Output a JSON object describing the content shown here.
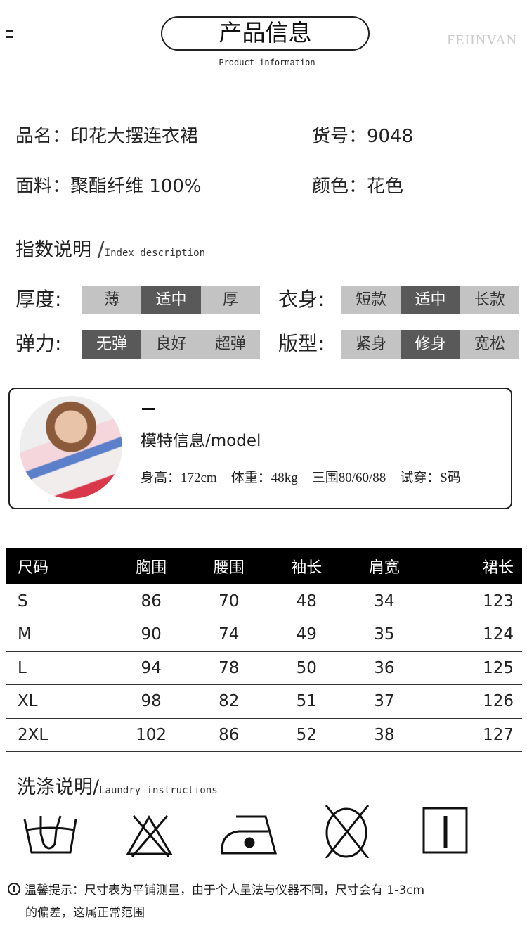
{
  "header": {
    "title": "产品信息",
    "subtitle": "Product information",
    "brand": "FEIINVAN"
  },
  "product": {
    "name": "品名：印花大摆连衣裙",
    "sku": "货号：9048",
    "fabric": "面料：聚酯纤维 100%",
    "color": "颜色：花色"
  },
  "index": {
    "title": "指数说明",
    "title_en": "Index description",
    "groups": [
      {
        "label": "厚度:",
        "options": [
          "薄",
          "适中",
          "厚"
        ],
        "selected": 1
      },
      {
        "label": "衣身:",
        "options": [
          "短款",
          "适中",
          "长款"
        ],
        "selected": 1
      },
      {
        "label": "弹力:",
        "options": [
          "无弹",
          "良好",
          "超弹"
        ],
        "selected": 0
      },
      {
        "label": "版型:",
        "options": [
          "紧身",
          "修身",
          "宽松"
        ],
        "selected": 1
      }
    ]
  },
  "model": {
    "title": "模特信息/model",
    "height": "身高：172cm",
    "weight": "体重：48kg",
    "measurements": "三围80/60/88",
    "size": "试穿：S码"
  },
  "size_table": {
    "headers": [
      "尺码",
      "胸围",
      "腰围",
      "袖长",
      "肩宽",
      "裙长"
    ],
    "rows": [
      [
        "S",
        "86",
        "70",
        "48",
        "34",
        "123"
      ],
      [
        "M",
        "90",
        "74",
        "49",
        "35",
        "124"
      ],
      [
        "L",
        "94",
        "78",
        "50",
        "36",
        "125"
      ],
      [
        "XL",
        "98",
        "82",
        "51",
        "37",
        "126"
      ],
      [
        "2XL",
        "102",
        "86",
        "52",
        "38",
        "127"
      ]
    ]
  },
  "laundry": {
    "title": "洗涤说明/",
    "title_en": "Laundry instructions",
    "icons": [
      "hand-wash-icon",
      "no-bleach-icon",
      "iron-medium-icon",
      "no-tumble-dry-icon",
      "line-dry-icon"
    ]
  },
  "notice": {
    "line1": "温馨提示：尺寸表为平铺测量，由于个人量法与仪器不同，尺寸会有 1-3cm",
    "line2": "的偏差，这属正常范围"
  }
}
